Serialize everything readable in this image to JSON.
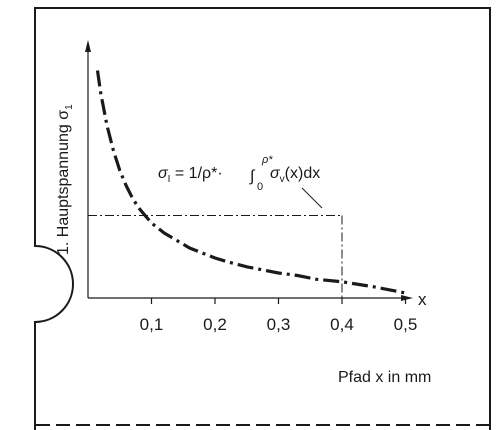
{
  "chart_data": {
    "type": "line",
    "xlabel": "Pfad x in mm",
    "ylabel": "1. Hauptspannung σ",
    "ylabel_subscript": "1",
    "x_axis_letter": "x",
    "xlim": [
      0,
      0.52
    ],
    "ylim": [
      0,
      1
    ],
    "xticks": [
      "0,1",
      "0,2",
      "0,3",
      "0,4",
      "0,5"
    ],
    "xtick_values": [
      0.1,
      0.2,
      0.3,
      0.4,
      0.5
    ],
    "series": [
      {
        "style": "dash-dot",
        "x": [
          0.015,
          0.02,
          0.03,
          0.04,
          0.05,
          0.06,
          0.07,
          0.08,
          0.09,
          0.1,
          0.12,
          0.14,
          0.16,
          0.18,
          0.2,
          0.22,
          0.25,
          0.28,
          0.3,
          0.33,
          0.36,
          0.4,
          0.45,
          0.5
        ],
        "y": [
          0.91,
          0.82,
          0.69,
          0.59,
          0.51,
          0.45,
          0.4,
          0.36,
          0.33,
          0.3,
          0.26,
          0.23,
          0.2,
          0.18,
          0.16,
          0.145,
          0.125,
          0.11,
          0.1,
          0.09,
          0.075,
          0.065,
          0.045,
          0.02
        ]
      }
    ],
    "averaging_box": {
      "x_end": 0.4,
      "y_level": 0.33
    },
    "annotation": {
      "lhs": "σ",
      "lhs_sub": "I",
      "eq": " = 1/ρ*· ",
      "integral": "∫",
      "upper": "ρ*",
      "lower": "0",
      "sigma": "σ",
      "sigma_sub": "v",
      "tail": "(x)dx"
    }
  }
}
